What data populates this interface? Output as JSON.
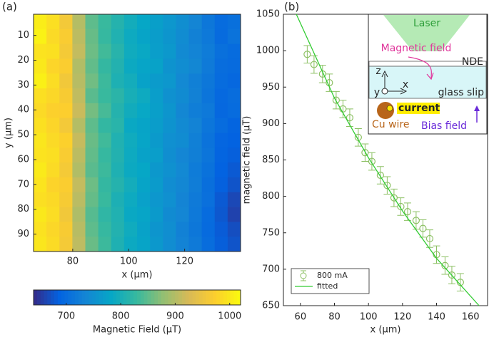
{
  "chart_data": [
    {
      "type": "heatmap",
      "title": "(a)",
      "xlabel": "x (μm)",
      "ylabel": "y (μm)",
      "xlim": [
        66,
        140
      ],
      "ylim": [
        1.5,
        97
      ],
      "y_reversed": true,
      "xticks": [
        80,
        100,
        120
      ],
      "yticks": [
        10,
        20,
        30,
        40,
        50,
        60,
        70,
        80,
        90
      ],
      "colormap": "parula",
      "clim": [
        640,
        1020
      ],
      "colorbar": {
        "label": "Magnetic Field (μT)",
        "ticks": [
          700,
          800,
          900,
          1000
        ]
      },
      "z": [
        [
          1005,
          990,
          960,
          900,
          850,
          830,
          812,
          795,
          782,
          772,
          760,
          748,
          735,
          715,
          700,
          705
        ],
        [
          1010,
          985,
          968,
          905,
          855,
          828,
          808,
          790,
          778,
          768,
          758,
          745,
          730,
          718,
          698,
          710
        ],
        [
          995,
          992,
          962,
          910,
          858,
          835,
          815,
          792,
          785,
          770,
          762,
          742,
          733,
          722,
          705,
          700
        ],
        [
          1000,
          980,
          970,
          898,
          852,
          826,
          810,
          788,
          780,
          775,
          755,
          746,
          738,
          720,
          702,
          698
        ],
        [
          1008,
          988,
          958,
          902,
          860,
          832,
          805,
          796,
          776,
          766,
          760,
          740,
          728,
          716,
          700,
          695
        ],
        [
          990,
          982,
          966,
          908,
          848,
          830,
          818,
          800,
          790,
          770,
          752,
          744,
          730,
          712,
          696,
          702
        ],
        [
          985,
          975,
          972,
          915,
          862,
          838,
          812,
          794,
          784,
          772,
          758,
          738,
          725,
          718,
          695,
          700
        ],
        [
          992,
          980,
          960,
          900,
          850,
          825,
          816,
          786,
          778,
          768,
          755,
          742,
          732,
          714,
          700,
          690
        ],
        [
          998,
          985,
          975,
          912,
          856,
          834,
          808,
          792,
          780,
          764,
          750,
          745,
          728,
          710,
          692,
          688
        ],
        [
          995,
          990,
          968,
          905,
          852,
          828,
          810,
          790,
          776,
          770,
          748,
          736,
          726,
          712,
          690,
          685
        ],
        [
          1002,
          986,
          962,
          898,
          848,
          832,
          806,
          788,
          782,
          762,
          752,
          740,
          722,
          708,
          688,
          680
        ],
        [
          996,
          978,
          970,
          910,
          858,
          826,
          812,
          796,
          778,
          766,
          746,
          738,
          724,
          704,
          686,
          675
        ],
        [
          990,
          984,
          965,
          904,
          854,
          830,
          804,
          790,
          774,
          760,
          750,
          734,
          720,
          706,
          680,
          665
        ],
        [
          1000,
          988,
          958,
          896,
          846,
          822,
          808,
          786,
          780,
          764,
          744,
          736,
          718,
          700,
          678,
          660
        ],
        [
          994,
          982,
          966,
          902,
          850,
          828,
          810,
          792,
          776,
          758,
          748,
          730,
          716,
          698,
          682,
          670
        ],
        [
          998,
          986,
          962,
          906,
          856,
          832,
          806,
          788,
          778,
          762,
          746,
          732,
          720,
          702,
          684,
          675
        ]
      ]
    },
    {
      "type": "scatter",
      "title": "(b)",
      "xlabel": "x (μm)",
      "ylabel": "magnetic field (μT)",
      "xlim": [
        50,
        170
      ],
      "ylim": [
        650,
        1050
      ],
      "xticks": [
        60,
        80,
        100,
        120,
        140,
        160
      ],
      "yticks": [
        650,
        700,
        750,
        800,
        850,
        900,
        950,
        1000,
        1050
      ],
      "legend": "lower left",
      "series": [
        {
          "name": "800 mA",
          "color": "#8cc063",
          "x": [
            64,
            68,
            73,
            77,
            81,
            85,
            89,
            94,
            98,
            102,
            107,
            111,
            115,
            119,
            123,
            128,
            132,
            136,
            140,
            145,
            149,
            154
          ],
          "values": [
            995,
            981,
            968,
            956,
            932,
            920,
            908,
            881,
            860,
            848,
            829,
            815,
            798,
            786,
            779,
            767,
            756,
            742,
            720,
            705,
            692,
            682
          ],
          "errors": [
            12,
            12,
            12,
            12,
            12,
            12,
            12,
            12,
            12,
            12,
            12,
            12,
            12,
            12,
            12,
            12,
            12,
            12,
            12,
            12,
            12,
            12
          ]
        },
        {
          "name": "fitted",
          "type": "line",
          "color": "#33cc33",
          "x": [
            57.6,
            80,
            100,
            120,
            140,
            165
          ],
          "values": [
            1050,
            935,
            853,
            780,
            715,
            650
          ]
        }
      ],
      "annotations": [
        "Laser",
        "Magnetic field",
        "NDE",
        "z",
        "y",
        "x",
        "glass slip",
        "current",
        "Cu wire",
        "Bias field"
      ]
    }
  ]
}
